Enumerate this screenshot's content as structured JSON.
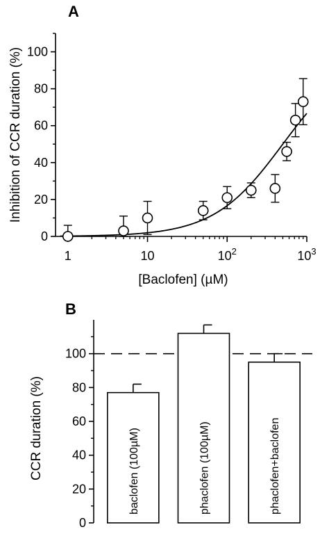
{
  "chart_data": [
    {
      "panel": "A",
      "type": "scatter",
      "xlabel": "[Baclofen]  (µM)",
      "ylabel": "Inhibition of CCR duration (%)",
      "x_scale": "log",
      "xlim": [
        0.7,
        1000
      ],
      "ylim": [
        0,
        110
      ],
      "x_ticks": [
        1,
        10,
        100,
        1000
      ],
      "x_tick_labels": [
        {
          "base": "1",
          "exp": ""
        },
        {
          "base": "10",
          "exp": ""
        },
        {
          "base": "10",
          "exp": "2"
        },
        {
          "base": "10",
          "exp": "3"
        }
      ],
      "y_ticks": [
        0,
        20,
        40,
        60,
        80,
        100
      ],
      "points": [
        {
          "x": 1,
          "y": 0,
          "err": 6
        },
        {
          "x": 5,
          "y": 3,
          "err": 8
        },
        {
          "x": 10,
          "y": 10,
          "err": 9
        },
        {
          "x": 50,
          "y": 14,
          "err": 5
        },
        {
          "x": 100,
          "y": 21,
          "err": 6
        },
        {
          "x": 200,
          "y": 25,
          "err": 4
        },
        {
          "x": 400,
          "y": 26,
          "err": 7.5
        },
        {
          "x": 560,
          "y": 46,
          "err": 5
        },
        {
          "x": 720,
          "y": 63,
          "err": 9
        },
        {
          "x": 900,
          "y": 73,
          "err": 12.5
        }
      ],
      "fit": {
        "type": "hill",
        "max": 100,
        "ec50": 500,
        "hill": 1.0
      },
      "grid": false,
      "legend": "none"
    },
    {
      "panel": "B",
      "type": "bar",
      "ylabel": "CCR duration (%)",
      "ylim": [
        0,
        120
      ],
      "y_ticks": [
        0,
        20,
        40,
        60,
        80,
        100
      ],
      "categories": [
        "baclofen (100µM)",
        "phaclofen (100µM)",
        "phaclofen+baclofen"
      ],
      "values": [
        77,
        112,
        95
      ],
      "errors": [
        5,
        5,
        5
      ],
      "reference_line": 100,
      "grid": false,
      "legend": "none"
    }
  ]
}
